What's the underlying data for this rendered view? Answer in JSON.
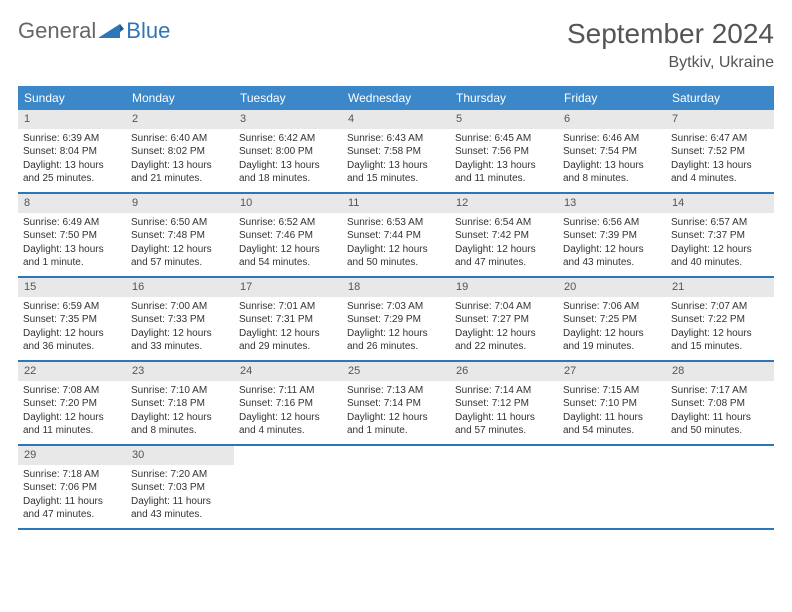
{
  "branding": {
    "logo_word1": "General",
    "logo_word2": "Blue",
    "logo_text_color": "#666666",
    "logo_accent_color": "#2f76b8"
  },
  "header": {
    "month_title": "September 2024",
    "location": "Bytkiv, Ukraine",
    "title_color": "#555555",
    "title_fontsize": 28,
    "location_fontsize": 16
  },
  "colors": {
    "header_row_bg": "#3b87c8",
    "header_row_text": "#ffffff",
    "day_number_bg": "#e8e8e8",
    "week_divider": "#2f76b8",
    "body_text": "#333333",
    "background": "#ffffff"
  },
  "day_names": [
    "Sunday",
    "Monday",
    "Tuesday",
    "Wednesday",
    "Thursday",
    "Friday",
    "Saturday"
  ],
  "weeks": [
    [
      {
        "n": "1",
        "sr": "Sunrise: 6:39 AM",
        "ss": "Sunset: 8:04 PM",
        "d1": "Daylight: 13 hours",
        "d2": "and 25 minutes."
      },
      {
        "n": "2",
        "sr": "Sunrise: 6:40 AM",
        "ss": "Sunset: 8:02 PM",
        "d1": "Daylight: 13 hours",
        "d2": "and 21 minutes."
      },
      {
        "n": "3",
        "sr": "Sunrise: 6:42 AM",
        "ss": "Sunset: 8:00 PM",
        "d1": "Daylight: 13 hours",
        "d2": "and 18 minutes."
      },
      {
        "n": "4",
        "sr": "Sunrise: 6:43 AM",
        "ss": "Sunset: 7:58 PM",
        "d1": "Daylight: 13 hours",
        "d2": "and 15 minutes."
      },
      {
        "n": "5",
        "sr": "Sunrise: 6:45 AM",
        "ss": "Sunset: 7:56 PM",
        "d1": "Daylight: 13 hours",
        "d2": "and 11 minutes."
      },
      {
        "n": "6",
        "sr": "Sunrise: 6:46 AM",
        "ss": "Sunset: 7:54 PM",
        "d1": "Daylight: 13 hours",
        "d2": "and 8 minutes."
      },
      {
        "n": "7",
        "sr": "Sunrise: 6:47 AM",
        "ss": "Sunset: 7:52 PM",
        "d1": "Daylight: 13 hours",
        "d2": "and 4 minutes."
      }
    ],
    [
      {
        "n": "8",
        "sr": "Sunrise: 6:49 AM",
        "ss": "Sunset: 7:50 PM",
        "d1": "Daylight: 13 hours",
        "d2": "and 1 minute."
      },
      {
        "n": "9",
        "sr": "Sunrise: 6:50 AM",
        "ss": "Sunset: 7:48 PM",
        "d1": "Daylight: 12 hours",
        "d2": "and 57 minutes."
      },
      {
        "n": "10",
        "sr": "Sunrise: 6:52 AM",
        "ss": "Sunset: 7:46 PM",
        "d1": "Daylight: 12 hours",
        "d2": "and 54 minutes."
      },
      {
        "n": "11",
        "sr": "Sunrise: 6:53 AM",
        "ss": "Sunset: 7:44 PM",
        "d1": "Daylight: 12 hours",
        "d2": "and 50 minutes."
      },
      {
        "n": "12",
        "sr": "Sunrise: 6:54 AM",
        "ss": "Sunset: 7:42 PM",
        "d1": "Daylight: 12 hours",
        "d2": "and 47 minutes."
      },
      {
        "n": "13",
        "sr": "Sunrise: 6:56 AM",
        "ss": "Sunset: 7:39 PM",
        "d1": "Daylight: 12 hours",
        "d2": "and 43 minutes."
      },
      {
        "n": "14",
        "sr": "Sunrise: 6:57 AM",
        "ss": "Sunset: 7:37 PM",
        "d1": "Daylight: 12 hours",
        "d2": "and 40 minutes."
      }
    ],
    [
      {
        "n": "15",
        "sr": "Sunrise: 6:59 AM",
        "ss": "Sunset: 7:35 PM",
        "d1": "Daylight: 12 hours",
        "d2": "and 36 minutes."
      },
      {
        "n": "16",
        "sr": "Sunrise: 7:00 AM",
        "ss": "Sunset: 7:33 PM",
        "d1": "Daylight: 12 hours",
        "d2": "and 33 minutes."
      },
      {
        "n": "17",
        "sr": "Sunrise: 7:01 AM",
        "ss": "Sunset: 7:31 PM",
        "d1": "Daylight: 12 hours",
        "d2": "and 29 minutes."
      },
      {
        "n": "18",
        "sr": "Sunrise: 7:03 AM",
        "ss": "Sunset: 7:29 PM",
        "d1": "Daylight: 12 hours",
        "d2": "and 26 minutes."
      },
      {
        "n": "19",
        "sr": "Sunrise: 7:04 AM",
        "ss": "Sunset: 7:27 PM",
        "d1": "Daylight: 12 hours",
        "d2": "and 22 minutes."
      },
      {
        "n": "20",
        "sr": "Sunrise: 7:06 AM",
        "ss": "Sunset: 7:25 PM",
        "d1": "Daylight: 12 hours",
        "d2": "and 19 minutes."
      },
      {
        "n": "21",
        "sr": "Sunrise: 7:07 AM",
        "ss": "Sunset: 7:22 PM",
        "d1": "Daylight: 12 hours",
        "d2": "and 15 minutes."
      }
    ],
    [
      {
        "n": "22",
        "sr": "Sunrise: 7:08 AM",
        "ss": "Sunset: 7:20 PM",
        "d1": "Daylight: 12 hours",
        "d2": "and 11 minutes."
      },
      {
        "n": "23",
        "sr": "Sunrise: 7:10 AM",
        "ss": "Sunset: 7:18 PM",
        "d1": "Daylight: 12 hours",
        "d2": "and 8 minutes."
      },
      {
        "n": "24",
        "sr": "Sunrise: 7:11 AM",
        "ss": "Sunset: 7:16 PM",
        "d1": "Daylight: 12 hours",
        "d2": "and 4 minutes."
      },
      {
        "n": "25",
        "sr": "Sunrise: 7:13 AM",
        "ss": "Sunset: 7:14 PM",
        "d1": "Daylight: 12 hours",
        "d2": "and 1 minute."
      },
      {
        "n": "26",
        "sr": "Sunrise: 7:14 AM",
        "ss": "Sunset: 7:12 PM",
        "d1": "Daylight: 11 hours",
        "d2": "and 57 minutes."
      },
      {
        "n": "27",
        "sr": "Sunrise: 7:15 AM",
        "ss": "Sunset: 7:10 PM",
        "d1": "Daylight: 11 hours",
        "d2": "and 54 minutes."
      },
      {
        "n": "28",
        "sr": "Sunrise: 7:17 AM",
        "ss": "Sunset: 7:08 PM",
        "d1": "Daylight: 11 hours",
        "d2": "and 50 minutes."
      }
    ],
    [
      {
        "n": "29",
        "sr": "Sunrise: 7:18 AM",
        "ss": "Sunset: 7:06 PM",
        "d1": "Daylight: 11 hours",
        "d2": "and 47 minutes."
      },
      {
        "n": "30",
        "sr": "Sunrise: 7:20 AM",
        "ss": "Sunset: 7:03 PM",
        "d1": "Daylight: 11 hours",
        "d2": "and 43 minutes."
      },
      null,
      null,
      null,
      null,
      null
    ]
  ]
}
